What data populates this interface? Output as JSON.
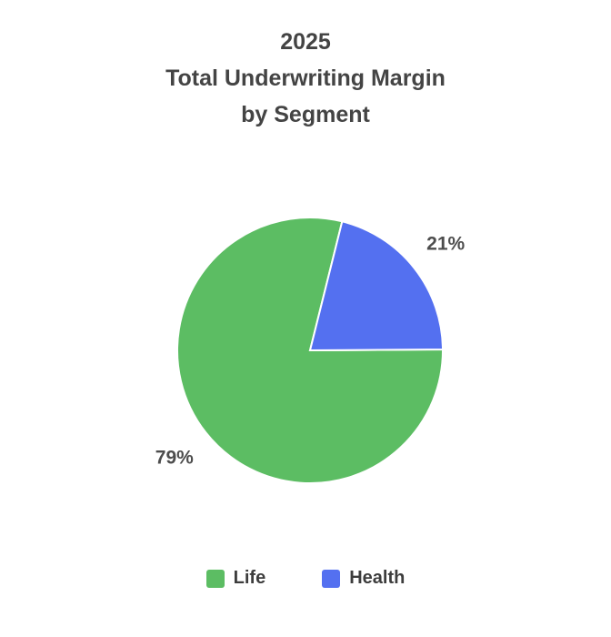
{
  "title": {
    "lines": [
      "2025",
      "Total Underwriting Margin",
      "by Segment"
    ]
  },
  "chart_data": {
    "type": "pie",
    "title": "2025 Total Underwriting Margin by Segment",
    "labels": [
      "Life",
      "Health"
    ],
    "values": [
      79,
      21
    ],
    "slice_labels": [
      "79%",
      "21%"
    ],
    "colors": [
      "#5cbd63",
      "#5470f0"
    ],
    "label_color": "#4d4d4d",
    "legend_position": "bottom",
    "start_angle_deg": 76,
    "direction": "counterclockwise"
  },
  "legend": {
    "items": [
      {
        "label": "Life",
        "color": "#5cbd63"
      },
      {
        "label": "Health",
        "color": "#5470f0"
      }
    ]
  }
}
